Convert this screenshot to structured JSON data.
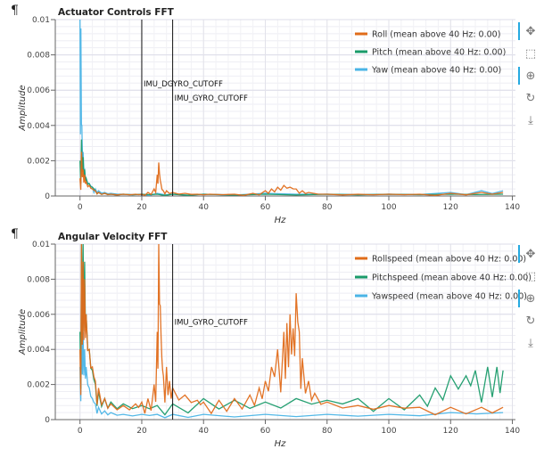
{
  "pilcrow": "¶",
  "colors": {
    "roll": "#e06c1a",
    "pitch": "#1a9b6a",
    "yaw": "#4ab4e6",
    "grid": "#e6e6f0",
    "axis": "#444444"
  },
  "toolbar": [
    {
      "name": "pan-icon",
      "glyph": "✥",
      "active": true
    },
    {
      "name": "box-zoom-icon",
      "glyph": "⬚",
      "active": false
    },
    {
      "name": "wheel-zoom-icon",
      "glyph": "⊕",
      "active": true
    },
    {
      "name": "reset-icon",
      "glyph": "↻",
      "active": false
    },
    {
      "name": "save-icon",
      "glyph": "⤓",
      "active": false
    }
  ],
  "chart_data": [
    {
      "type": "line",
      "title": "Actuator Controls FFT",
      "xlabel": "Hz",
      "ylabel": "Amplitude",
      "xlim": [
        -8,
        141
      ],
      "ylim": [
        0,
        0.01
      ],
      "xticks": [
        0,
        20,
        40,
        60,
        80,
        100,
        120,
        140
      ],
      "xtick_labels": [
        "0",
        "20",
        "40",
        "60",
        "80",
        "100",
        "120",
        "140"
      ],
      "yticks": [
        0,
        0.002,
        0.004,
        0.006,
        0.008,
        0.01
      ],
      "ytick_labels": [
        "0",
        "0.002",
        "0.004",
        "0.006",
        "0.008",
        "0.01"
      ],
      "grid": true,
      "legend_position": "top-right",
      "vlines": [
        {
          "x": 20,
          "label": "IMU_DGYRO_CUTOFF",
          "label_y": 0.0062
        },
        {
          "x": 30,
          "label": "IMU_GYRO_CUTOFF",
          "label_y": 0.0054
        }
      ],
      "series": [
        {
          "name": "Roll (mean above 40 Hz: 0.00)",
          "color_key": "roll",
          "x": [
            0,
            0.5,
            1,
            1.5,
            2,
            3,
            4,
            5,
            6,
            8,
            10,
            14,
            18,
            20,
            22,
            24,
            25,
            25.5,
            26,
            26.5,
            27,
            28,
            30,
            34,
            38,
            42,
            50,
            56,
            60,
            62,
            64,
            66,
            68,
            70,
            72,
            74,
            80,
            90,
            100,
            110,
            120,
            130,
            137
          ],
          "y": [
            0.001,
            0.0025,
            0.0015,
            0.0012,
            0.0008,
            0.0006,
            0.0004,
            0.0003,
            0.0002,
            0.00015,
            0.0001,
            0.0001,
            0.0001,
            0.0001,
            0.0002,
            0.0004,
            0.0012,
            0.0019,
            0.0009,
            0.0004,
            0.0003,
            0.0003,
            0.0002,
            0.00015,
            0.0001,
            0.0001,
            0.0001,
            0.00015,
            0.0003,
            0.0004,
            0.0005,
            0.0006,
            0.0005,
            0.0004,
            0.0003,
            0.0002,
            0.0001,
            0.0001,
            0.0001,
            0.0001,
            0.00015,
            0.0002,
            0.0002
          ]
        },
        {
          "name": "Pitch (mean above 40 Hz: 0.00)",
          "color_key": "pitch",
          "x": [
            0,
            0.5,
            1,
            1.5,
            2,
            3,
            4,
            5,
            6,
            8,
            10,
            14,
            20,
            25,
            30,
            40,
            60,
            80,
            100,
            120,
            137
          ],
          "y": [
            0.002,
            0.0032,
            0.0022,
            0.0015,
            0.001,
            0.0007,
            0.0005,
            0.0003,
            0.0002,
            0.00015,
            0.0001,
            0.0001,
            0.0001,
            0.0001,
            0.0001,
            0.0001,
            0.0001,
            0.0001,
            0.0001,
            0.0001,
            0.0001
          ]
        },
        {
          "name": "Yaw (mean above 40 Hz: 0.00)",
          "color_key": "yaw",
          "x": [
            0,
            0.3,
            0.6,
            1,
            1.5,
            2,
            3,
            4,
            5,
            6,
            8,
            10,
            14,
            20,
            25,
            30,
            40,
            60,
            80,
            100,
            120,
            130,
            137
          ],
          "y": [
            0.01,
            0.0095,
            0.004,
            0.0025,
            0.0015,
            0.001,
            0.0007,
            0.0005,
            0.0004,
            0.0003,
            0.0002,
            0.00015,
            0.0001,
            0.0001,
            0.00015,
            0.0001,
            0.0001,
            0.00015,
            0.0001,
            0.0001,
            0.0002,
            0.0003,
            0.0003
          ]
        }
      ]
    },
    {
      "type": "line",
      "title": "Angular Velocity FFT",
      "xlabel": "Hz",
      "ylabel": "Amplitude",
      "xlim": [
        -8,
        141
      ],
      "ylim": [
        0,
        0.01
      ],
      "xticks": [
        0,
        20,
        40,
        60,
        80,
        100,
        120,
        140
      ],
      "xtick_labels": [
        "0",
        "20",
        "40",
        "60",
        "80",
        "100",
        "120",
        "140"
      ],
      "yticks": [
        0,
        0.002,
        0.004,
        0.006,
        0.008,
        0.01
      ],
      "ytick_labels": [
        "0",
        "0.002",
        "0.004",
        "0.006",
        "0.008",
        "0.01"
      ],
      "grid": true,
      "legend_position": "top-right",
      "vlines": [
        {
          "x": 30,
          "label": "IMU_GYRO_CUTOFF",
          "label_y": 0.0054
        }
      ],
      "series": [
        {
          "name": "Rollspeed (mean above 40 Hz: 0.00)",
          "color_key": "roll",
          "x": [
            0,
            0.5,
            1,
            1.5,
            2,
            3,
            4,
            5,
            6,
            8,
            10,
            14,
            18,
            20,
            22,
            24,
            25,
            25.5,
            26,
            26.5,
            27,
            28,
            29,
            30,
            34,
            38,
            40,
            45,
            50,
            55,
            58,
            60,
            62,
            64,
            66,
            67,
            68,
            69,
            70,
            71,
            72,
            74,
            76,
            80,
            90,
            100,
            110,
            120,
            130,
            137
          ],
          "y": [
            0.004,
            0.01,
            0.009,
            0.008,
            0.006,
            0.004,
            0.003,
            0.0022,
            0.0018,
            0.0012,
            0.0009,
            0.0008,
            0.0009,
            0.001,
            0.0012,
            0.002,
            0.005,
            0.01,
            0.0065,
            0.0035,
            0.0025,
            0.003,
            0.0022,
            0.0018,
            0.0014,
            0.0011,
            0.001,
            0.0011,
            0.0012,
            0.0014,
            0.0018,
            0.0022,
            0.003,
            0.004,
            0.005,
            0.0055,
            0.006,
            0.0052,
            0.0072,
            0.005,
            0.0035,
            0.0022,
            0.0015,
            0.001,
            0.0008,
            0.0008,
            0.0007,
            0.0007,
            0.0007,
            0.0007
          ]
        },
        {
          "name": "Pitchspeed (mean above 40 Hz: 0.00)",
          "color_key": "pitch",
          "x": [
            0,
            0.5,
            1,
            1.5,
            2,
            3,
            4,
            5,
            6,
            8,
            10,
            14,
            20,
            25,
            30,
            40,
            50,
            60,
            70,
            80,
            90,
            100,
            110,
            115,
            120,
            125,
            128,
            132,
            135,
            137
          ],
          "y": [
            0.005,
            0.01,
            0.01,
            0.009,
            0.006,
            0.004,
            0.0028,
            0.002,
            0.0016,
            0.0012,
            0.001,
            0.0009,
            0.0008,
            0.0008,
            0.0009,
            0.0012,
            0.0011,
            0.001,
            0.0012,
            0.0011,
            0.0012,
            0.0012,
            0.0014,
            0.0018,
            0.0025,
            0.0025,
            0.0028,
            0.003,
            0.003,
            0.0028
          ]
        },
        {
          "name": "Yawspeed (mean above 40 Hz: 0.00)",
          "color_key": "yaw",
          "x": [
            0,
            0.5,
            1,
            1.5,
            2,
            3,
            4,
            5,
            6,
            8,
            10,
            14,
            20,
            25,
            30,
            40,
            60,
            80,
            100,
            120,
            137
          ],
          "y": [
            0.003,
            0.006,
            0.005,
            0.004,
            0.003,
            0.0018,
            0.0012,
            0.0009,
            0.0007,
            0.0005,
            0.0004,
            0.0003,
            0.0003,
            0.0003,
            0.0003,
            0.0003,
            0.0003,
            0.0003,
            0.0003,
            0.0004,
            0.0004
          ]
        }
      ]
    }
  ]
}
